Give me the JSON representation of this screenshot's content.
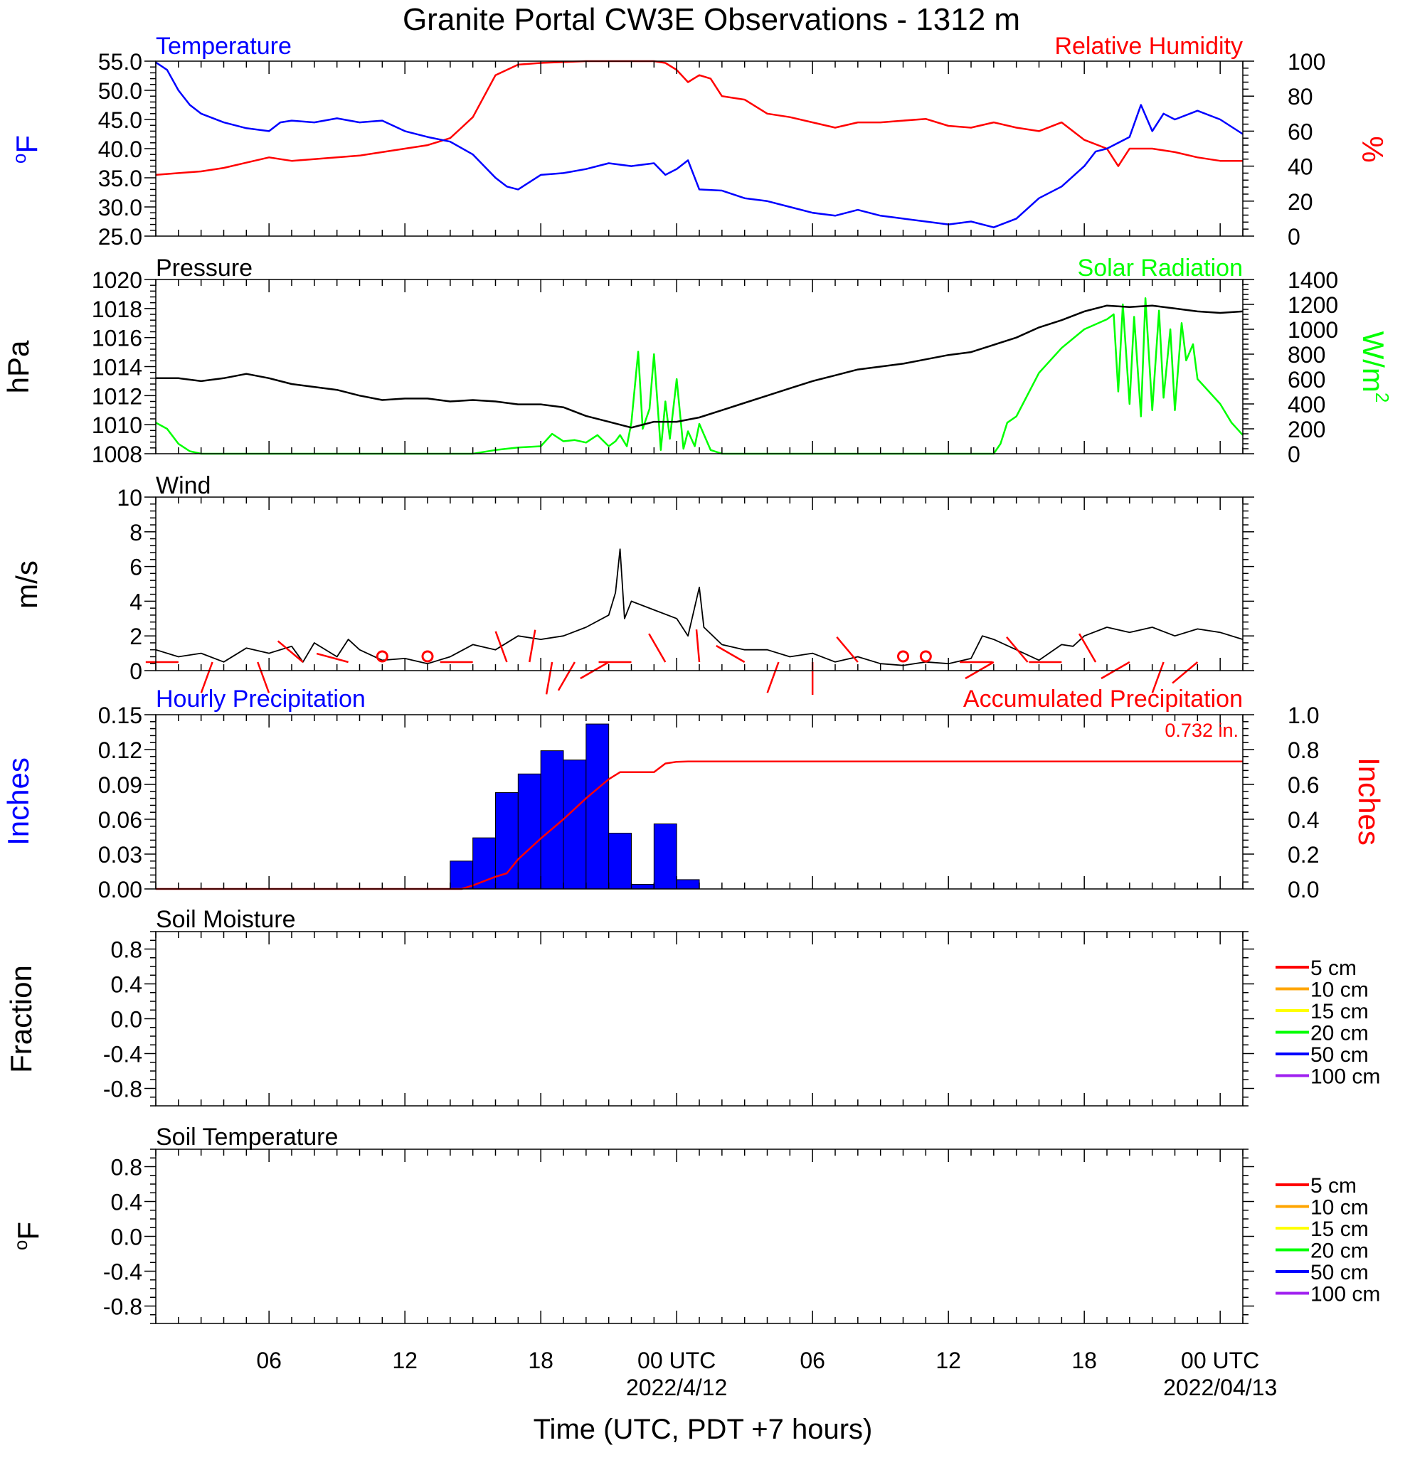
{
  "title": "Granite Portal CW3E Observations - 1312 m",
  "x_axis": {
    "label": "Time (UTC, PDT +7 hours)",
    "range_hours": [
      0,
      48
    ],
    "ticks": [
      {
        "h": 5,
        "label": "06"
      },
      {
        "h": 11,
        "label": "12"
      },
      {
        "h": 17,
        "label": "18"
      },
      {
        "h": 23,
        "label": "00 UTC",
        "sub": "2022/4/12"
      },
      {
        "h": 29,
        "label": "06"
      },
      {
        "h": 35,
        "label": "12"
      },
      {
        "h": 41,
        "label": "18"
      },
      {
        "h": 47,
        "label": "00 UTC",
        "sub": "2022/04/13"
      }
    ]
  },
  "colors": {
    "temperature": "#0000ff",
    "humidity": "#ff0000",
    "pressure": "#000000",
    "solar": "#00ff00",
    "wind": "#000000",
    "barbs": "#ff0000",
    "hourly_precip": "#0000ff",
    "accum_precip": "#ff0000",
    "depth_colors": [
      "#ff0000",
      "#ffa500",
      "#ffff00",
      "#00ff00",
      "#0000ff",
      "#a020f0"
    ]
  },
  "chart_data": [
    {
      "type": "line",
      "panel": "temp_rh",
      "left_label": "Temperature",
      "right_label": "Relative Humidity",
      "left_unit": "oF",
      "right_unit": "%",
      "left_ticks": [
        "55.0",
        "50.0",
        "45.0",
        "40.0",
        "35.0",
        "30.0",
        "25.0"
      ],
      "right_ticks": [
        "100",
        "80",
        "60",
        "40",
        "20",
        "0"
      ],
      "ylim_left": [
        25,
        55
      ],
      "ylim_right": [
        0,
        100
      ],
      "series": [
        {
          "name": "Temperature",
          "axis": "left",
          "x": [
            0,
            0.5,
            1,
            1.5,
            2,
            3,
            4,
            5,
            5.5,
            6,
            7,
            8,
            9,
            10,
            11,
            12,
            13,
            14,
            15,
            15.5,
            16,
            17,
            18,
            19,
            20,
            21,
            22,
            22.5,
            23,
            23.5,
            24,
            25,
            26,
            27,
            28,
            29,
            30,
            31,
            32,
            33,
            34,
            35,
            36,
            37,
            38,
            39,
            40,
            41,
            41.5,
            42,
            43,
            43.5,
            44,
            44.5,
            45,
            46,
            47,
            48
          ],
          "y": [
            54.8,
            53.5,
            50,
            47.5,
            46,
            44.5,
            43.5,
            43,
            44.5,
            44.8,
            44.5,
            45.2,
            44.5,
            44.8,
            43,
            42,
            41.2,
            39,
            35,
            33.5,
            33,
            35.5,
            35.8,
            36.5,
            37.5,
            37,
            37.5,
            35.5,
            36.5,
            38,
            33,
            32.8,
            31.5,
            31,
            30,
            29,
            28.5,
            29.5,
            28.5,
            28,
            27.5,
            27,
            27.5,
            26.5,
            28,
            31.5,
            33.5,
            37,
            39.5,
            40,
            42,
            47.5,
            43,
            46,
            45,
            46.5,
            45,
            42.5
          ]
        },
        {
          "name": "Relative Humidity",
          "axis": "right",
          "x": [
            0,
            1,
            2,
            3,
            4,
            5,
            6,
            7,
            8,
            9,
            10,
            11,
            12,
            12.5,
            13,
            13.5,
            14,
            14.5,
            15,
            16,
            17,
            18,
            19,
            20,
            21,
            22,
            22.5,
            23,
            23.5,
            24,
            24.5,
            25,
            26,
            27,
            28,
            29,
            30,
            31,
            32,
            33,
            34,
            35,
            36,
            37,
            38,
            39,
            40,
            41,
            42,
            42.5,
            43,
            44,
            45,
            46,
            47,
            48
          ],
          "y": [
            35,
            36,
            37,
            39,
            42,
            45,
            43,
            44,
            45,
            46,
            48,
            50,
            52,
            54,
            56,
            62,
            68,
            80,
            92,
            98,
            99,
            99.5,
            100,
            100,
            100,
            100,
            99,
            95,
            88,
            92,
            90,
            80,
            78,
            70,
            68,
            65,
            62,
            65,
            65,
            66,
            67,
            63,
            62,
            65,
            62,
            60,
            65,
            55,
            50,
            40,
            50,
            50,
            48,
            45,
            43,
            43
          ]
        }
      ]
    },
    {
      "type": "line",
      "panel": "pressure_solar",
      "left_label": "Pressure",
      "right_label": "Solar Radiation",
      "left_unit": "hPa",
      "right_unit": "W/m2",
      "left_ticks": [
        "1020",
        "1018",
        "1016",
        "1014",
        "1012",
        "1010",
        "1008"
      ],
      "right_ticks": [
        "1400",
        "1200",
        "1000",
        "800",
        "600",
        "400",
        "200",
        "0"
      ],
      "ylim_left": [
        1008,
        1020
      ],
      "ylim_right": [
        0,
        1400
      ],
      "series": [
        {
          "name": "Pressure",
          "axis": "left",
          "x": [
            0,
            1,
            2,
            3,
            4,
            5,
            6,
            7,
            8,
            9,
            10,
            11,
            12,
            13,
            14,
            15,
            16,
            17,
            18,
            19,
            20,
            21,
            22,
            23,
            24,
            25,
            26,
            27,
            28,
            29,
            30,
            31,
            32,
            33,
            34,
            35,
            36,
            37,
            38,
            39,
            40,
            41,
            42,
            43,
            44,
            45,
            46,
            47,
            48
          ],
          "y": [
            1013.2,
            1013.2,
            1013.0,
            1013.2,
            1013.5,
            1013.2,
            1012.8,
            1012.6,
            1012.4,
            1012.0,
            1011.7,
            1011.8,
            1011.8,
            1011.6,
            1011.7,
            1011.6,
            1011.4,
            1011.4,
            1011.2,
            1010.6,
            1010.2,
            1009.8,
            1010.2,
            1010.2,
            1010.5,
            1011.0,
            1011.5,
            1012.0,
            1012.5,
            1013.0,
            1013.4,
            1013.8,
            1014.0,
            1014.2,
            1014.5,
            1014.8,
            1015.0,
            1015.5,
            1016.0,
            1016.7,
            1017.2,
            1017.8,
            1018.2,
            1018.1,
            1018.2,
            1018.0,
            1017.8,
            1017.7,
            1017.8
          ]
        },
        {
          "name": "Solar Radiation",
          "axis": "right",
          "x": [
            0,
            0.5,
            1,
            1.5,
            2,
            14,
            15,
            16,
            17,
            17.5,
            18,
            18.5,
            19,
            19.5,
            20,
            20.3,
            20.5,
            20.8,
            21,
            21.3,
            21.5,
            21.8,
            22,
            22.3,
            22.5,
            22.7,
            23,
            23.3,
            23.5,
            23.8,
            24,
            24.5,
            25,
            32,
            37,
            37.3,
            37.6,
            38,
            39,
            40,
            41,
            42,
            42.3,
            42.5,
            42.7,
            43,
            43.2,
            43.5,
            43.7,
            44,
            44.3,
            44.5,
            44.8,
            45,
            45.3,
            45.5,
            45.8,
            46,
            46.5,
            47,
            47.5,
            48
          ],
          "y": [
            250,
            200,
            80,
            20,
            0,
            0,
            30,
            50,
            60,
            160,
            100,
            110,
            90,
            150,
            60,
            100,
            150,
            60,
            250,
            820,
            200,
            360,
            800,
            30,
            420,
            120,
            600,
            40,
            180,
            60,
            240,
            30,
            0,
            0,
            0,
            80,
            250,
            300,
            650,
            850,
            1000,
            1080,
            1120,
            500,
            1200,
            400,
            1100,
            300,
            1250,
            350,
            1150,
            450,
            1000,
            350,
            1050,
            750,
            880,
            600,
            500,
            400,
            250,
            150
          ]
        }
      ]
    },
    {
      "type": "line",
      "panel": "wind",
      "left_label": "Wind",
      "left_unit": "m/s",
      "left_ticks": [
        "10",
        "8",
        "6",
        "4",
        "2",
        "0"
      ],
      "ylim": [
        0,
        10
      ],
      "series": [
        {
          "name": "Wind",
          "x": [
            0,
            1,
            2,
            3,
            4,
            5,
            6,
            6.5,
            7,
            8,
            8.5,
            9,
            10,
            11,
            12,
            13,
            14,
            15,
            16,
            17,
            18,
            19,
            20,
            20.3,
            20.5,
            20.7,
            21,
            22,
            23,
            23.5,
            24,
            24.2,
            25,
            26,
            27,
            28,
            29,
            30,
            31,
            32,
            33,
            34,
            35,
            36,
            36.5,
            37,
            38,
            39,
            40,
            40.5,
            41,
            42,
            43,
            44,
            45,
            46,
            47,
            48
          ],
          "y": [
            1.2,
            0.8,
            1.0,
            0.5,
            1.3,
            1.0,
            1.4,
            0.5,
            1.6,
            0.8,
            1.8,
            1.2,
            0.6,
            0.7,
            0.4,
            0.8,
            1.5,
            1.2,
            2.0,
            1.8,
            2.0,
            2.5,
            3.2,
            4.5,
            7.0,
            3.0,
            4.0,
            3.5,
            3.0,
            2.0,
            4.8,
            2.5,
            1.5,
            1.2,
            1.2,
            0.8,
            1.0,
            0.5,
            0.8,
            0.4,
            0.3,
            0.5,
            0.4,
            0.7,
            2.0,
            1.8,
            1.2,
            0.6,
            1.5,
            1.4,
            2.0,
            2.5,
            2.2,
            2.5,
            2.0,
            2.4,
            2.2,
            1.8
          ]
        }
      ],
      "barbs": [
        {
          "h": 1,
          "dir": 270
        },
        {
          "h": 2.5,
          "dir": 200
        },
        {
          "h": 4.5,
          "dir": 160
        },
        {
          "h": 6.5,
          "dir": 310
        },
        {
          "h": 8.5,
          "dir": 285
        },
        {
          "h": 10,
          "calm": true
        },
        {
          "h": 12,
          "calm": true
        },
        {
          "h": 14,
          "dir": 270
        },
        {
          "h": 15.5,
          "dir": 340
        },
        {
          "h": 16.5,
          "dir": 10
        },
        {
          "h": 17.5,
          "dir": 190
        },
        {
          "h": 18.5,
          "dir": 210
        },
        {
          "h": 20,
          "dir": 240
        },
        {
          "h": 21,
          "dir": 270
        },
        {
          "h": 22.5,
          "dir": 330
        },
        {
          "h": 24,
          "dir": 355
        },
        {
          "h": 26,
          "dir": 300
        },
        {
          "h": 27.5,
          "dir": 200
        },
        {
          "h": 29,
          "dir": 180
        },
        {
          "h": 31,
          "dir": 320
        },
        {
          "h": 33,
          "calm": true
        },
        {
          "h": 34,
          "calm": true
        },
        {
          "h": 35.5,
          "dir": 90
        },
        {
          "h": 37,
          "dir": 240
        },
        {
          "h": 38.5,
          "dir": 320
        },
        {
          "h": 40,
          "dir": 270
        },
        {
          "h": 41.5,
          "dir": 330
        },
        {
          "h": 43,
          "dir": 240
        },
        {
          "h": 44.5,
          "dir": 200
        },
        {
          "h": 46,
          "dir": 230
        }
      ]
    },
    {
      "type": "bar",
      "panel": "precip",
      "left_label": "Hourly Precipitation",
      "right_label": "Accumulated Precipitation",
      "left_unit": "Inches",
      "right_unit": "Inches",
      "total_text": "0.732 in.",
      "left_ticks": [
        "0.15",
        "0.12",
        "0.09",
        "0.06",
        "0.03",
        "0.00"
      ],
      "right_ticks": [
        "1.0",
        "0.8",
        "0.6",
        "0.4",
        "0.2",
        "0.0"
      ],
      "ylim_left": [
        0,
        0.15
      ],
      "ylim_right": [
        0,
        1.0
      ],
      "series": [
        {
          "name": "Hourly Precipitation",
          "axis": "left",
          "x": [
            13,
            14,
            15,
            16,
            17,
            18,
            19,
            20,
            21,
            22,
            23
          ],
          "values": [
            0.024,
            0.044,
            0.083,
            0.099,
            0.119,
            0.111,
            0.142,
            0.048,
            0.004,
            0.056,
            0.008
          ]
        },
        {
          "name": "Accumulated Precipitation",
          "axis": "right",
          "x": [
            0,
            13.5,
            14,
            15,
            15.5,
            16,
            17,
            18,
            19,
            20,
            20.5,
            21,
            22,
            22.5,
            23,
            23.5,
            48
          ],
          "y": [
            0,
            0,
            0.02,
            0.07,
            0.09,
            0.17,
            0.29,
            0.4,
            0.52,
            0.63,
            0.67,
            0.67,
            0.67,
            0.72,
            0.73,
            0.732,
            0.732
          ]
        }
      ]
    },
    {
      "type": "line",
      "panel": "soil_moisture",
      "left_label": "Soil Moisture",
      "left_unit": "Fraction",
      "left_ticks": [
        "0.8",
        "0.4",
        "0.0",
        "-0.4",
        "-0.8"
      ],
      "ylim": [
        -1,
        1
      ],
      "legend": [
        "5 cm",
        "10 cm",
        "15 cm",
        "20 cm",
        "50 cm",
        "100 cm"
      ],
      "series": []
    },
    {
      "type": "line",
      "panel": "soil_temperature",
      "left_label": "Soil Temperature",
      "left_unit": "oF",
      "left_ticks": [
        "0.8",
        "0.4",
        "0.0",
        "-0.4",
        "-0.8"
      ],
      "ylim": [
        -1,
        1
      ],
      "legend": [
        "5 cm",
        "10 cm",
        "15 cm",
        "20 cm",
        "50 cm",
        "100 cm"
      ],
      "series": []
    }
  ]
}
